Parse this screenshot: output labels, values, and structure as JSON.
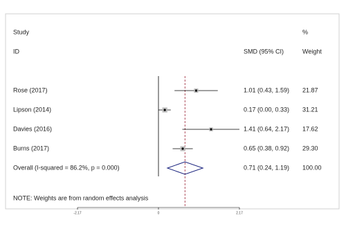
{
  "chart_data": {
    "type": "forest",
    "header": {
      "study": "Study",
      "id": "ID",
      "pct": "%",
      "effect": "SMD (95% CI)",
      "weight": "Weight"
    },
    "studies": [
      {
        "name": "Rose (2017)",
        "smd": 1.01,
        "lo": 0.43,
        "hi": 1.59,
        "label": "1.01 (0.43, 1.59)",
        "weight": 21.87,
        "weight_label": "21.87"
      },
      {
        "name": "Lipson (2014)",
        "smd": 0.17,
        "lo": 0.0,
        "hi": 0.33,
        "label": "0.17 (0.00, 0.33)",
        "weight": 31.21,
        "weight_label": "31.21"
      },
      {
        "name": "Davies (2016)",
        "smd": 1.41,
        "lo": 0.64,
        "hi": 2.17,
        "label": "1.41 (0.64, 2.17)",
        "weight": 17.62,
        "weight_label": "17.62"
      },
      {
        "name": "Burns (2017)",
        "smd": 0.65,
        "lo": 0.38,
        "hi": 0.92,
        "label": "0.65 (0.38, 0.92)",
        "weight": 29.3,
        "weight_label": "29.30"
      }
    ],
    "overall": {
      "name": "Overall  (I-squared = 86.2%, p = 0.000)",
      "smd": 0.71,
      "lo": 0.24,
      "hi": 1.19,
      "label": "0.71 (0.24, 1.19)",
      "weight": 100,
      "weight_label": "100.00"
    },
    "note": "NOTE: Weights are from random effects analysis",
    "xlim": [
      -2.17,
      2.17
    ],
    "xticks": [
      -2.17,
      0,
      2.17
    ],
    "line_color": "#000000",
    "overall_color": "#9b2335",
    "diamond_color": "#1a237e"
  }
}
